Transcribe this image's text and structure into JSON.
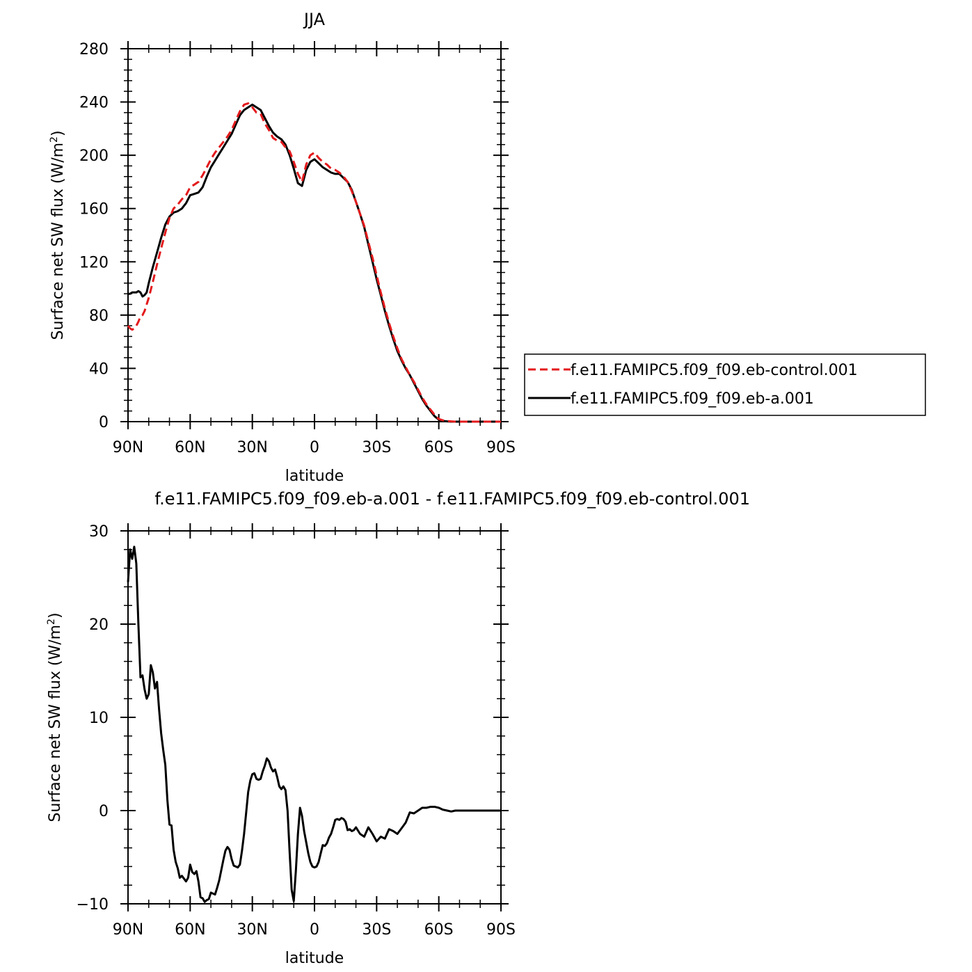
{
  "chart_data": [
    {
      "type": "line",
      "title": "JJA",
      "xlabel": "latitude",
      "ylabel": "Surface net SW flux (W/m",
      "ylabel_sup": "2",
      "ylabel_close": ")",
      "xlim": [
        90,
        -90
      ],
      "ylim": [
        0,
        280
      ],
      "xticks": [
        90,
        60,
        30,
        0,
        -30,
        -60,
        -90
      ],
      "xtick_labels": [
        "90N",
        "60N",
        "30N",
        "0",
        "30S",
        "60S",
        "90S"
      ],
      "yticks": [
        0,
        40,
        80,
        120,
        160,
        200,
        240,
        280
      ],
      "ytick_labels": [
        "0",
        "40",
        "80",
        "120",
        "160",
        "200",
        "240",
        "280"
      ],
      "legend_position": "right",
      "series": [
        {
          "name": "f.e11.FAMIPC5.f09_f09.eb-control.001",
          "color": "#e31a1c",
          "dash": "dashed",
          "x": [
            90,
            89,
            88,
            87,
            86,
            85,
            84,
            83,
            82,
            81,
            80,
            78,
            76,
            74,
            72,
            70,
            68,
            66,
            64,
            62,
            60,
            58,
            56,
            54,
            52,
            50,
            48,
            46,
            44,
            42,
            40,
            38,
            36,
            34,
            32,
            30,
            28,
            26,
            24,
            22,
            20,
            18,
            16,
            14,
            12,
            10,
            8,
            6,
            4,
            2,
            0,
            -2,
            -4,
            -6,
            -8,
            -10,
            -12,
            -14,
            -16,
            -18,
            -20,
            -22,
            -24,
            -26,
            -28,
            -30,
            -32,
            -34,
            -36,
            -38,
            -40,
            -42,
            -44,
            -46,
            -48,
            -50,
            -52,
            -54,
            -56,
            -58,
            -60,
            -62,
            -64,
            -66,
            -68,
            -70,
            -72,
            -75,
            -80,
            -85,
            -90
          ],
          "y": [
            72,
            70,
            69,
            70,
            72,
            75,
            79,
            80,
            83,
            88,
            93,
            105,
            118,
            130,
            142,
            153,
            160,
            163,
            167,
            170,
            176,
            178,
            180,
            185,
            191,
            197,
            202,
            206,
            210,
            214,
            219,
            226,
            233,
            238,
            239,
            236,
            232,
            231,
            224,
            219,
            213,
            211,
            210,
            206,
            203,
            195,
            186,
            180,
            193,
            200,
            202,
            198,
            195,
            193,
            190,
            189,
            187,
            184,
            180,
            173,
            165,
            156,
            147,
            135,
            123,
            110,
            97,
            85,
            74,
            64,
            55,
            47,
            41,
            35,
            30,
            24,
            18,
            13,
            9,
            5,
            2,
            1,
            0.4,
            0.2,
            0,
            0,
            0,
            0,
            0,
            0,
            0
          ]
        },
        {
          "name": "f.e11.FAMIPC5.f09_f09.eb-a.001",
          "color": "#000000",
          "dash": "solid",
          "x": [
            90,
            89,
            88,
            87,
            86,
            85,
            84,
            83,
            82,
            81,
            80,
            78,
            76,
            74,
            72,
            70,
            68,
            66,
            64,
            62,
            60,
            58,
            56,
            54,
            52,
            50,
            48,
            46,
            44,
            42,
            40,
            38,
            36,
            34,
            32,
            30,
            28,
            26,
            24,
            22,
            20,
            18,
            16,
            14,
            12,
            10,
            8,
            6,
            4,
            2,
            0,
            -2,
            -4,
            -6,
            -8,
            -10,
            -12,
            -14,
            -16,
            -18,
            -20,
            -22,
            -24,
            -26,
            -28,
            -30,
            -32,
            -34,
            -36,
            -38,
            -40,
            -42,
            -44,
            -46,
            -48,
            -50,
            -52,
            -54,
            -56,
            -58,
            -60,
            -62,
            -64,
            -66,
            -68,
            -70,
            -72,
            -75,
            -80,
            -85,
            -90
          ],
          "y": [
            96,
            96,
            97,
            97,
            97,
            98,
            97,
            94,
            95,
            97,
            104,
            116,
            127,
            138,
            148,
            154,
            157,
            158,
            160,
            164,
            170,
            171,
            172,
            176,
            184,
            191,
            196,
            201,
            206,
            211,
            216,
            223,
            230,
            234,
            236,
            238,
            236,
            234,
            228,
            222,
            217,
            214,
            212,
            208,
            200,
            190,
            179,
            177,
            189,
            195,
            197,
            194,
            191,
            189,
            187,
            186,
            186,
            183,
            180,
            174,
            165,
            156,
            146,
            133,
            120,
            107,
            95,
            83,
            72,
            62,
            53,
            46,
            40,
            35,
            29,
            23,
            17,
            12,
            8,
            4,
            1.5,
            0.5,
            0.2,
            0,
            0,
            0,
            0,
            0,
            0,
            0,
            0
          ]
        }
      ]
    },
    {
      "type": "line",
      "title": "f.e11.FAMIPC5.f09_f09.eb-a.001 - f.e11.FAMIPC5.f09_f09.eb-control.001",
      "xlabel": "latitude",
      "ylabel": "Surface net SW flux (W/m",
      "ylabel_sup": "2",
      "ylabel_close": ")",
      "xlim": [
        90,
        -90
      ],
      "ylim": [
        -10,
        30
      ],
      "xticks": [
        90,
        60,
        30,
        0,
        -30,
        -60,
        -90
      ],
      "xtick_labels": [
        "90N",
        "60N",
        "30N",
        "0",
        "30S",
        "60S",
        "90S"
      ],
      "yticks": [
        -10,
        0,
        10,
        20,
        30
      ],
      "ytick_labels": [
        "−10",
        "0",
        "10",
        "20",
        "30"
      ],
      "series": [
        {
          "color": "#000000",
          "x": [
            90,
            89,
            88,
            87,
            86,
            85,
            84,
            83,
            82,
            81,
            80,
            79,
            78,
            77,
            76,
            75,
            74,
            73,
            72,
            71,
            70,
            69,
            68,
            67,
            66,
            65,
            64,
            63,
            62,
            61,
            60,
            59,
            58,
            57,
            56,
            55,
            54,
            53,
            52,
            51,
            50,
            49,
            48,
            47,
            46,
            45,
            44,
            43,
            42,
            41,
            40,
            39,
            38,
            37,
            36,
            35,
            34,
            33,
            32,
            31,
            30,
            29,
            28,
            27,
            26,
            25,
            24,
            23,
            22,
            21,
            20,
            19,
            18,
            17,
            16,
            15,
            14,
            13,
            12,
            11,
            10,
            9,
            8,
            7,
            6,
            5,
            4,
            3,
            2,
            1,
            0,
            -1,
            -2,
            -3,
            -4,
            -5,
            -6,
            -7,
            -8,
            -9,
            -10,
            -11,
            -12,
            -13,
            -14,
            -15,
            -16,
            -17,
            -18,
            -19,
            -20,
            -22,
            -24,
            -26,
            -28,
            -30,
            -32,
            -34,
            -36,
            -38,
            -40,
            -42,
            -44,
            -46,
            -48,
            -50,
            -52,
            -54,
            -56,
            -58,
            -60,
            -62,
            -64,
            -66,
            -68,
            -70,
            -75,
            -80,
            -85,
            -90
          ],
          "y": [
            24.5,
            28,
            27,
            28.3,
            26.5,
            20,
            14.3,
            14.5,
            13,
            12,
            12.5,
            15.6,
            14.8,
            13.1,
            13.8,
            10.8,
            8.3,
            6.5,
            4.9,
            1.1,
            -1.5,
            -1.6,
            -4.2,
            -5.5,
            -6.2,
            -7.2,
            -7.0,
            -7.3,
            -7.6,
            -7.2,
            -5.8,
            -6.6,
            -6.8,
            -6.5,
            -7.6,
            -9.3,
            -9.4,
            -9.8,
            -9.6,
            -9.5,
            -8.8,
            -8.9,
            -9.0,
            -8.3,
            -7.5,
            -6.4,
            -5.3,
            -4.3,
            -3.9,
            -4.2,
            -5.2,
            -5.9,
            -6.0,
            -6.1,
            -5.8,
            -4.3,
            -2.5,
            -0.3,
            2.0,
            3.2,
            3.9,
            4.0,
            3.4,
            3.3,
            3.4,
            4.2,
            4.8,
            5.6,
            5.3,
            4.6,
            4.2,
            4.4,
            3.6,
            2.6,
            2.3,
            2.6,
            2.2,
            0.0,
            -4.5,
            -8.5,
            -9.7,
            -6.5,
            -2.5,
            0.3,
            -0.6,
            -2.2,
            -3.4,
            -4.6,
            -5.5,
            -6.0,
            -6.1,
            -6.0,
            -5.5,
            -4.6,
            -3.7,
            -3.8,
            -3.5,
            -2.9,
            -2.5,
            -1.8,
            -1.0,
            -0.9,
            -1.0,
            -0.8,
            -0.9,
            -1.2,
            -2.1,
            -2.0,
            -2.2,
            -2.1,
            -1.8,
            -2.5,
            -2.8,
            -1.8,
            -2.5,
            -3.3,
            -2.8,
            -3.0,
            -2.0,
            -2.2,
            -2.5,
            -1.9,
            -1.3,
            -0.2,
            -0.3,
            0.0,
            0.3,
            0.3,
            0.4,
            0.4,
            0.3,
            0.1,
            0.0,
            -0.1,
            0.0,
            0.0,
            0.0,
            0.0,
            0.0,
            0.0
          ]
        }
      ]
    }
  ]
}
